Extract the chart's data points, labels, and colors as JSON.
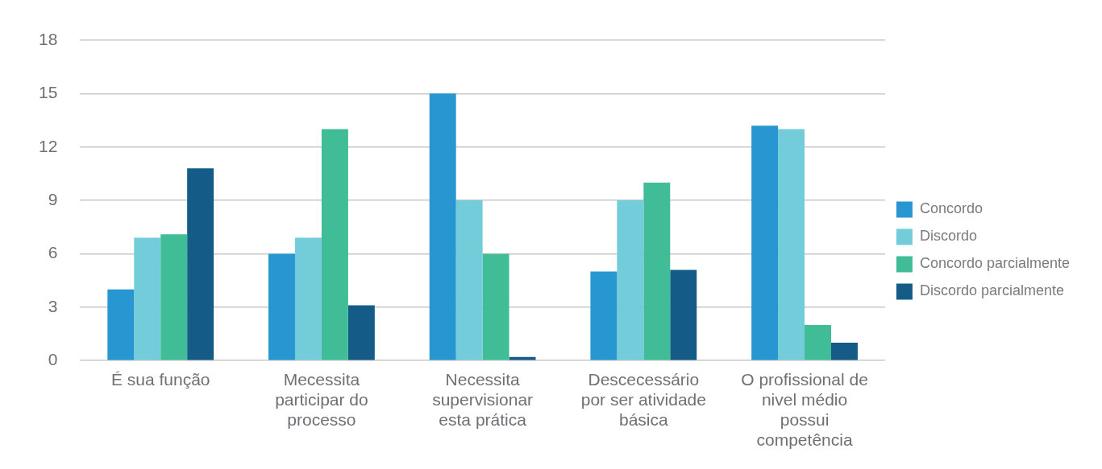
{
  "chart_data": {
    "type": "bar",
    "categories": [
      "É sua função",
      "Mecessita participar do processo",
      "Necessita supervisionar esta prática",
      "Descecessário por ser atividade básica",
      "O profissional de nivel médio possui competência"
    ],
    "series": [
      {
        "name": "Concordo",
        "color": "#2896d0",
        "values": [
          4,
          6,
          15,
          5,
          13.2
        ]
      },
      {
        "name": "Discordo",
        "color": "#72ccda",
        "values": [
          6.9,
          6.9,
          9,
          9,
          13
        ]
      },
      {
        "name": "Concordo parcialmente",
        "color": "#40bd96",
        "values": [
          7.1,
          13,
          6,
          10,
          2
        ]
      },
      {
        "name": "Discordo parcialmente",
        "color": "#145c87",
        "values": [
          10.8,
          3.1,
          0.2,
          5.1,
          1
        ]
      }
    ],
    "ylim": [
      0,
      18
    ],
    "yticks": [
      0,
      3,
      6,
      9,
      12,
      15,
      18
    ],
    "grid": "y",
    "legend": "right"
  }
}
